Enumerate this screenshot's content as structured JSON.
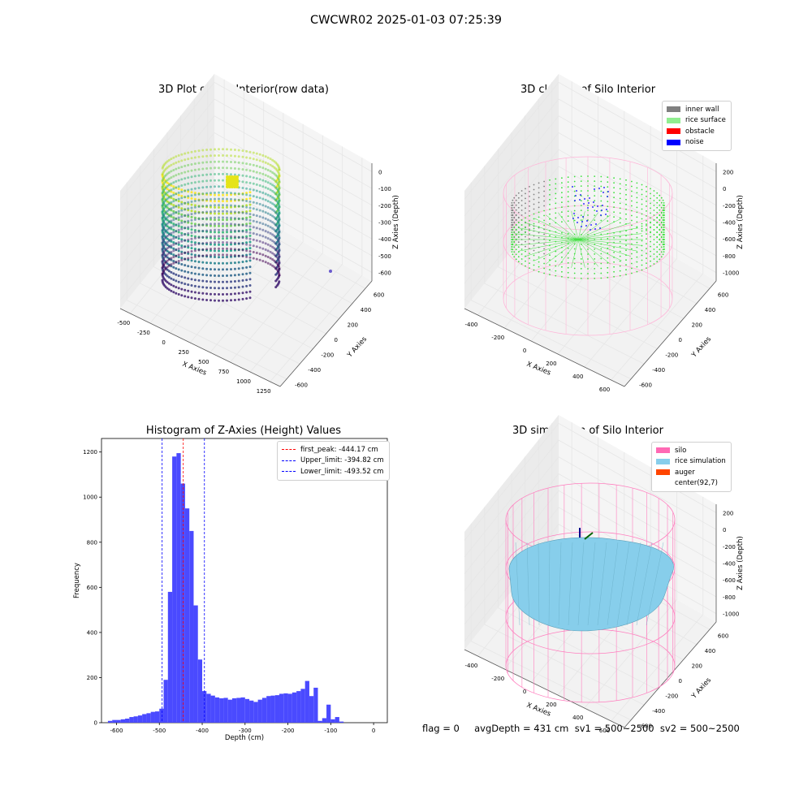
{
  "page": {
    "title": "CWCWR02 2025-01-03 07:25:39",
    "footer": "flag = 0     avgDepth = 431 cm  sv1 = 500~2500  sv2 = 500~2500"
  },
  "chart_data": [
    {
      "type": "scatter",
      "projection": "3d",
      "title": "3D Plot of Silo Interior(row data)",
      "xlabel": "X Axies",
      "ylabel": "Y Axies",
      "zlabel": "Z Axies (Depth)",
      "x_ticks": [
        "-500",
        "-250",
        "0",
        "250",
        "500",
        "750",
        "1000",
        "1250"
      ],
      "y_ticks": [
        "-600",
        "-400",
        "-200",
        "0",
        "200",
        "400",
        "600"
      ],
      "z_ticks": [
        "-600",
        "-500",
        "-400",
        "-300",
        "-200",
        "-100",
        "0"
      ],
      "colormap": "viridis",
      "grid": true
    },
    {
      "type": "scatter",
      "projection": "3d",
      "title": "3D classify of Silo Interior",
      "xlabel": "X Axies",
      "ylabel": "Y Axies",
      "zlabel": "Z Axies (Depth)",
      "x_ticks": [
        "-400",
        "-200",
        "0",
        "200",
        "400",
        "600"
      ],
      "y_ticks": [
        "-600",
        "-400",
        "-200",
        "0",
        "200",
        "400",
        "600"
      ],
      "z_ticks": [
        "-1000",
        "-800",
        "-600",
        "-400",
        "-200",
        "0",
        "200"
      ],
      "legend_position": "top-right",
      "legend": [
        {
          "label": "inner wall",
          "color": "#808080"
        },
        {
          "label": "rice surface",
          "color": "#90ee90"
        },
        {
          "label": "obstacle",
          "color": "#ff0000"
        },
        {
          "label": "noise",
          "color": "#0000ff"
        }
      ],
      "grid": true
    },
    {
      "type": "bar",
      "title": "Histogram of Z-Axies (Height) Values",
      "xlabel": "Depth (cm)",
      "ylabel": "Frequency",
      "xlim": [
        -635,
        32
      ],
      "ylim": [
        0,
        1260
      ],
      "x_ticks": [
        "-600",
        "-500",
        "-400",
        "-300",
        "-200",
        "-100",
        "0"
      ],
      "y_ticks": [
        "0",
        "200",
        "400",
        "600",
        "800",
        "1000",
        "1200"
      ],
      "bar_color": "#4a4aff",
      "bin_width": 10,
      "bins_left": [
        -620,
        -610,
        -600,
        -590,
        -580,
        -570,
        -560,
        -550,
        -540,
        -530,
        -520,
        -510,
        -500,
        -490,
        -480,
        -470,
        -460,
        -450,
        -440,
        -430,
        -420,
        -410,
        -400,
        -390,
        -380,
        -370,
        -360,
        -350,
        -340,
        -330,
        -320,
        -310,
        -300,
        -290,
        -280,
        -270,
        -260,
        -250,
        -240,
        -230,
        -220,
        -210,
        -200,
        -190,
        -180,
        -170,
        -160,
        -150,
        -140,
        -130,
        -120,
        -110,
        -100,
        -90,
        -80,
        -70,
        -60,
        -50,
        -40,
        -30,
        -20,
        -10
      ],
      "values": [
        8,
        12,
        12,
        15,
        18,
        25,
        28,
        32,
        38,
        42,
        48,
        50,
        62,
        190,
        580,
        1180,
        1195,
        1060,
        950,
        850,
        520,
        280,
        140,
        128,
        120,
        112,
        108,
        110,
        102,
        108,
        110,
        112,
        105,
        98,
        92,
        102,
        110,
        118,
        120,
        122,
        128,
        130,
        128,
        134,
        140,
        150,
        185,
        118,
        155,
        8,
        20,
        80,
        15,
        25,
        5,
        0,
        0,
        0,
        0,
        0,
        0,
        0
      ],
      "vlines": [
        {
          "x": -444.17,
          "color": "#ff0000",
          "label": "first_peak: -444.17 cm"
        },
        {
          "x": -394.82,
          "color": "#0000ff",
          "label": "Upper_limit: -394.82 cm"
        },
        {
          "x": -493.52,
          "color": "#0000ff",
          "label": "Lower_limit: -493.52 cm"
        }
      ],
      "legend_position": "top-right",
      "grid": false
    },
    {
      "type": "surface",
      "projection": "3d",
      "title": "3D simulation of Silo Interior",
      "xlabel": "X Axies",
      "ylabel": "Y Axies",
      "zlabel": "Z Axies (Depth)",
      "x_ticks": [
        "-400",
        "-200",
        "0",
        "200",
        "400",
        "600"
      ],
      "y_ticks": [
        "-600",
        "-400",
        "-200",
        "0",
        "200",
        "400",
        "600"
      ],
      "z_ticks": [
        "-1000",
        "-800",
        "-600",
        "-400",
        "-200",
        "0",
        "200"
      ],
      "legend_position": "top-right",
      "legend": [
        {
          "label": "silo",
          "color": "#ff69b4"
        },
        {
          "label": "rice simulation",
          "color": "#87ceeb"
        },
        {
          "label": "auger",
          "color": "#ff4500"
        },
        {
          "label": "center(92,7)",
          "color": ""
        }
      ],
      "grid": true
    }
  ]
}
